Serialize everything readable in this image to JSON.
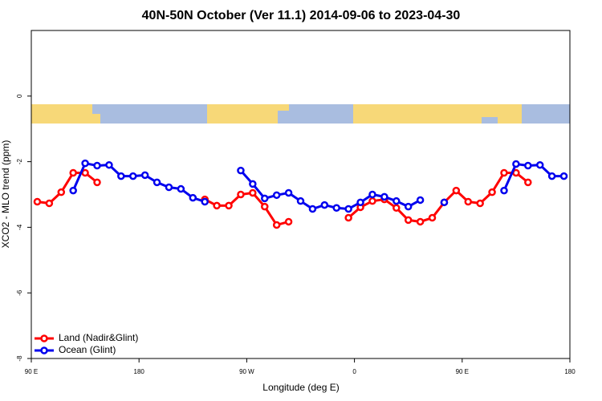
{
  "chart_data": {
    "type": "line",
    "title": "40N-50N October (Ver 11.1)   2014-09-06 to 2023-04-30",
    "xlabel": "Longitude (deg E)",
    "ylabel": "XCO2 - MLO trend (ppm)",
    "xlim": [
      90,
      540
    ],
    "xticks": [
      {
        "value": 90,
        "label": "90 E"
      },
      180,
      {
        "value": 270,
        "label": "90 W"
      },
      {
        "value": 360,
        "label": "0"
      },
      {
        "value": 450,
        "label": "90 E"
      },
      {
        "value": 540,
        "label": "180"
      }
    ],
    "ylim": [
      -8,
      2
    ],
    "yticks": [
      -8,
      -6,
      -4,
      -2,
      0
    ],
    "legend": "lower left",
    "x": [
      95,
      105,
      115,
      125,
      135,
      145,
      155,
      165,
      175,
      185,
      195,
      205,
      215,
      225,
      235,
      245,
      255,
      265,
      275,
      285,
      295,
      305,
      315,
      325,
      335,
      345,
      355,
      365,
      375,
      385,
      395,
      405,
      415,
      425,
      435,
      445,
      455,
      465,
      475,
      485,
      495,
      505,
      515,
      525,
      535
    ],
    "series": [
      {
        "name": "Land (Nadir&Glint)",
        "color": "#ff0000",
        "values": [
          -3.22,
          -3.27,
          -2.93,
          -2.34,
          -2.34,
          -2.63,
          null,
          null,
          null,
          null,
          null,
          null,
          null,
          null,
          -3.15,
          -3.34,
          -3.34,
          -3.0,
          -2.95,
          -3.37,
          -3.93,
          -3.83,
          null,
          null,
          null,
          null,
          -3.71,
          -3.39,
          -3.2,
          -3.15,
          -3.41,
          -3.78,
          -3.83,
          -3.71,
          -3.24,
          -2.88,
          -3.22,
          -3.27,
          -2.93,
          -2.34,
          -2.34,
          -2.63,
          null,
          null,
          null
        ]
      },
      {
        "name": "Ocean (Glint)",
        "color": "#0000ee",
        "values": [
          null,
          null,
          null,
          -2.88,
          -2.05,
          -2.12,
          -2.1,
          -2.44,
          -2.44,
          -2.41,
          -2.63,
          -2.78,
          -2.83,
          -3.1,
          -3.22,
          null,
          null,
          -2.27,
          -2.68,
          -3.12,
          -3.02,
          -2.95,
          -3.2,
          -3.44,
          -3.32,
          -3.41,
          -3.44,
          -3.24,
          -3.0,
          -3.07,
          -3.2,
          -3.37,
          -3.17,
          null,
          -3.24,
          null,
          null,
          null,
          null,
          -2.88,
          -2.07,
          -2.12,
          -2.1,
          -2.44,
          -2.44
        ]
      }
    ]
  }
}
